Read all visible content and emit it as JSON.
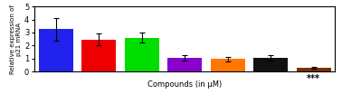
{
  "chart_data": {
    "type": "bar",
    "categories": [
      null,
      null,
      null,
      null,
      null,
      null,
      null
    ],
    "values": [
      3.25,
      2.45,
      2.6,
      1.05,
      0.95,
      1.05,
      0.28
    ],
    "errors": [
      0.85,
      0.45,
      0.38,
      0.18,
      0.15,
      0.22,
      0.08
    ],
    "colors": [
      "#2222ee",
      "#ee0000",
      "#00dd00",
      "#8800cc",
      "#ff7700",
      "#111111",
      "#7B3000"
    ],
    "xlabel": "Compounds (in μM)",
    "ylabel": "Relative expression of p21 mRNA",
    "ylim": [
      0,
      5
    ],
    "yticks": [
      0,
      1,
      2,
      3,
      4,
      5
    ],
    "annotations": [
      "***"
    ]
  }
}
